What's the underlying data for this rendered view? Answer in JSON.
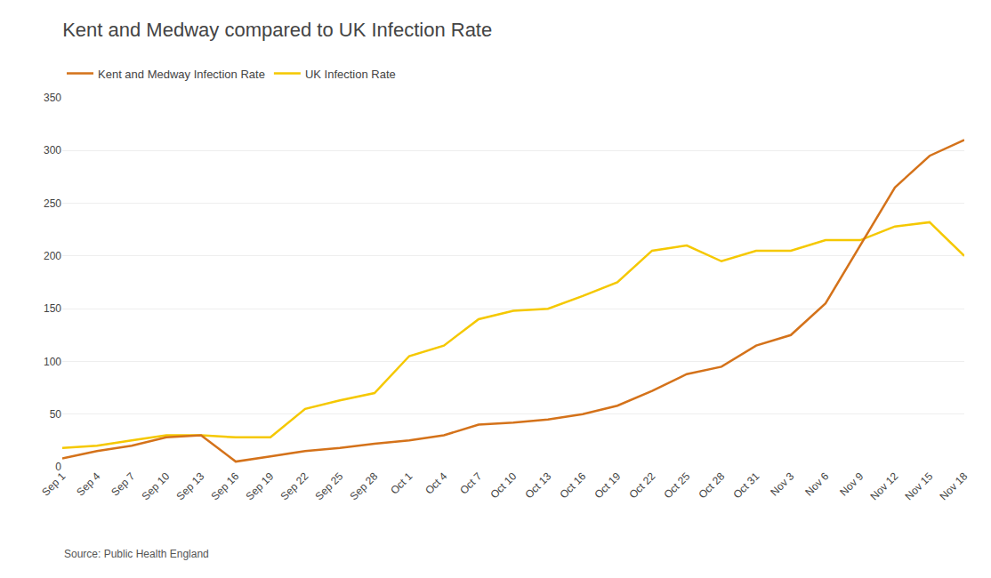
{
  "chart_data": {
    "type": "line",
    "title": "Kent and Medway compared to UK Infection Rate",
    "subtitle": "Source: Public Health England",
    "categories": [
      "Sep 1",
      "Sep 4",
      "Sep 7",
      "Sep 10",
      "Sep 13",
      "Sep 16",
      "Sep 19",
      "Sep 22",
      "Sep 25",
      "Sep 28",
      "Oct 1",
      "Oct 4",
      "Oct 7",
      "Oct 10",
      "Oct 13",
      "Oct 16",
      "Oct 19",
      "Oct 22",
      "Oct 25",
      "Oct 28",
      "Oct 31",
      "Nov 3",
      "Nov 6",
      "Nov 9",
      "Nov 12",
      "Nov 15",
      "Nov 18"
    ],
    "series": [
      {
        "name": "UK Infection Rate",
        "color": "#F5C800",
        "values": [
          18,
          20,
          25,
          30,
          30,
          28,
          28,
          55,
          63,
          70,
          105,
          115,
          140,
          148,
          150,
          162,
          175,
          205,
          210,
          195,
          205,
          205,
          215,
          215,
          228,
          232,
          200
        ]
      },
      {
        "name": "Kent and Medway Infection Rate",
        "color": "#D4721A",
        "values": [
          8,
          15,
          20,
          28,
          30,
          5,
          10,
          15,
          18,
          22,
          25,
          30,
          40,
          42,
          45,
          50,
          58,
          72,
          88,
          95,
          115,
          125,
          155,
          210,
          265,
          295,
          310
        ]
      }
    ],
    "ylim": [
      0,
      350
    ],
    "yticks": [
      0,
      50,
      100,
      150,
      200,
      250,
      300,
      350
    ],
    "grid": "y",
    "legend": "upper left"
  }
}
